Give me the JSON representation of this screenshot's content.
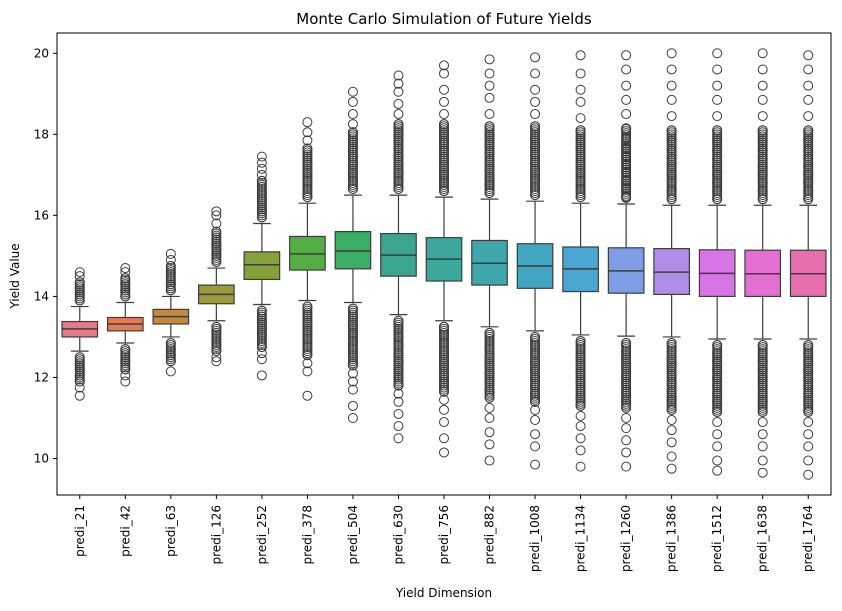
{
  "chart_data": {
    "type": "box",
    "title": "Monte Carlo Simulation of Future Yields",
    "xlabel": "Yield Dimension",
    "ylabel": "Yield Value",
    "ylim": [
      9.1,
      20.5
    ],
    "yticks": [
      10,
      12,
      14,
      16,
      18,
      20
    ],
    "grid": false,
    "categories": [
      "predi_21",
      "predi_42",
      "predi_63",
      "predi_126",
      "predi_252",
      "predi_378",
      "predi_504",
      "predi_630",
      "predi_756",
      "predi_882",
      "predi_1008",
      "predi_1134",
      "predi_1260",
      "predi_1386",
      "predi_1512",
      "predi_1638",
      "predi_1764"
    ],
    "colors": [
      "#e8798a",
      "#e57b55",
      "#c5893d",
      "#9b9a3c",
      "#85a23a",
      "#55ae45",
      "#3aad66",
      "#3ba68d",
      "#3ea79c",
      "#3fa6ac",
      "#41a6c1",
      "#4aa5d1",
      "#7d9de6",
      "#b08ee7",
      "#d774e6",
      "#e46fd2",
      "#e76fae"
    ],
    "boxes": [
      {
        "q1": 13.0,
        "median": 13.2,
        "q3": 13.38,
        "whislo": 12.65,
        "whishi": 13.75,
        "fliers_low": [
          12.5,
          12.35,
          12.2,
          12.05,
          11.9,
          11.75,
          11.55
        ],
        "fliers_high": [
          13.9,
          14.05,
          14.2,
          14.35,
          14.5,
          14.6
        ]
      },
      {
        "q1": 13.15,
        "median": 13.32,
        "q3": 13.48,
        "whislo": 12.85,
        "whishi": 13.85,
        "fliers_low": [
          12.7,
          12.55,
          12.4,
          12.2,
          12.05,
          11.9
        ],
        "fliers_high": [
          14.0,
          14.15,
          14.3,
          14.45,
          14.6,
          14.7
        ]
      },
      {
        "q1": 13.32,
        "median": 13.5,
        "q3": 13.68,
        "whislo": 13.0,
        "whishi": 14.0,
        "fliers_low": [
          12.85,
          12.7,
          12.55,
          12.4,
          12.15
        ],
        "fliers_high": [
          14.15,
          14.3,
          14.45,
          14.6,
          14.75,
          14.9,
          15.05
        ]
      },
      {
        "q1": 13.82,
        "median": 14.05,
        "q3": 14.28,
        "whislo": 13.4,
        "whishi": 14.7,
        "fliers_low": [
          13.25,
          13.1,
          12.95,
          12.8,
          12.65,
          12.5,
          12.4
        ],
        "fliers_high": [
          14.85,
          15.0,
          15.15,
          15.3,
          15.45,
          15.6,
          15.8,
          16.0,
          16.1
        ]
      },
      {
        "q1": 14.42,
        "median": 14.78,
        "q3": 15.1,
        "whislo": 13.8,
        "whishi": 15.8,
        "fliers_low": [
          13.65,
          13.5,
          13.35,
          13.2,
          13.05,
          12.9,
          12.75,
          12.6,
          12.45,
          12.05
        ],
        "fliers_high": [
          15.95,
          16.1,
          16.25,
          16.4,
          16.55,
          16.7,
          16.85,
          17.0,
          17.15,
          17.3,
          17.45
        ]
      },
      {
        "q1": 14.65,
        "median": 15.05,
        "q3": 15.48,
        "whislo": 13.9,
        "whishi": 16.3,
        "fliers_low": [
          13.75,
          13.55,
          13.35,
          13.15,
          12.95,
          12.75,
          12.55,
          12.35,
          12.15,
          11.55
        ],
        "fliers_high": [
          16.45,
          16.65,
          16.85,
          17.05,
          17.25,
          17.45,
          17.65,
          17.85,
          18.05,
          18.3
        ]
      },
      {
        "q1": 14.68,
        "median": 15.12,
        "q3": 15.6,
        "whislo": 13.85,
        "whishi": 16.5,
        "fliers_low": [
          13.7,
          13.5,
          13.3,
          13.1,
          12.9,
          12.7,
          12.5,
          12.3,
          12.1,
          11.9,
          11.7,
          11.3,
          11.0
        ],
        "fliers_high": [
          16.65,
          16.85,
          17.05,
          17.25,
          17.45,
          17.65,
          17.85,
          18.05,
          18.25,
          18.5,
          18.8,
          19.05
        ]
      },
      {
        "q1": 14.5,
        "median": 15.02,
        "q3": 15.55,
        "whislo": 13.55,
        "whishi": 16.5,
        "fliers_low": [
          13.4,
          13.2,
          13.0,
          12.8,
          12.6,
          12.4,
          12.2,
          12.0,
          11.8,
          11.6,
          11.4,
          11.1,
          10.8,
          10.5
        ],
        "fliers_high": [
          16.65,
          16.85,
          17.05,
          17.25,
          17.45,
          17.65,
          17.85,
          18.05,
          18.25,
          18.5,
          18.75,
          19.05,
          19.25,
          19.45
        ]
      },
      {
        "q1": 14.38,
        "median": 14.92,
        "q3": 15.45,
        "whislo": 13.4,
        "whishi": 16.45,
        "fliers_low": [
          13.25,
          13.05,
          12.85,
          12.65,
          12.45,
          12.25,
          12.05,
          11.85,
          11.65,
          11.45,
          11.2,
          10.9,
          10.5,
          10.15
        ],
        "fliers_high": [
          16.6,
          16.8,
          17.0,
          17.2,
          17.4,
          17.6,
          17.8,
          18.0,
          18.25,
          18.5,
          18.8,
          19.1,
          19.5,
          19.7
        ]
      },
      {
        "q1": 14.28,
        "median": 14.82,
        "q3": 15.38,
        "whislo": 13.25,
        "whishi": 16.4,
        "fliers_low": [
          13.1,
          12.9,
          12.7,
          12.5,
          12.3,
          12.1,
          11.9,
          11.7,
          11.5,
          11.25,
          11.0,
          10.65,
          10.35,
          9.95
        ],
        "fliers_high": [
          16.55,
          16.75,
          16.95,
          17.15,
          17.35,
          17.55,
          17.75,
          17.95,
          18.2,
          18.5,
          18.9,
          19.2,
          19.5,
          19.85
        ]
      },
      {
        "q1": 14.2,
        "median": 14.75,
        "q3": 15.3,
        "whislo": 13.15,
        "whishi": 16.35,
        "fliers_low": [
          13.0,
          12.8,
          12.6,
          12.4,
          12.2,
          12.0,
          11.8,
          11.6,
          11.4,
          11.2,
          10.95,
          10.6,
          10.3,
          9.85
        ],
        "fliers_high": [
          16.5,
          16.7,
          16.9,
          17.1,
          17.3,
          17.5,
          17.7,
          17.9,
          18.2,
          18.5,
          18.8,
          19.1,
          19.5,
          19.9
        ]
      },
      {
        "q1": 14.12,
        "median": 14.68,
        "q3": 15.22,
        "whislo": 13.05,
        "whishi": 16.3,
        "fliers_low": [
          12.9,
          12.7,
          12.5,
          12.3,
          12.1,
          11.9,
          11.7,
          11.5,
          11.3,
          11.05,
          10.8,
          10.5,
          10.2,
          9.8
        ],
        "fliers_high": [
          16.45,
          16.65,
          16.85,
          17.05,
          17.25,
          17.45,
          17.65,
          17.85,
          18.1,
          18.4,
          18.8,
          19.1,
          19.5,
          19.95
        ]
      },
      {
        "q1": 14.08,
        "median": 14.63,
        "q3": 15.2,
        "whislo": 13.02,
        "whishi": 16.28,
        "fliers_low": [
          12.85,
          12.65,
          12.45,
          12.25,
          12.05,
          11.85,
          11.65,
          11.45,
          11.25,
          11.0,
          10.75,
          10.45,
          10.15,
          9.8
        ],
        "fliers_high": [
          16.45,
          16.65,
          16.85,
          17.05,
          17.25,
          17.45,
          17.65,
          17.9,
          18.15,
          18.5,
          18.85,
          19.2,
          19.6,
          19.95
        ]
      },
      {
        "q1": 14.05,
        "median": 14.6,
        "q3": 15.18,
        "whislo": 13.0,
        "whishi": 16.25,
        "fliers_low": [
          12.85,
          12.65,
          12.45,
          12.25,
          12.05,
          11.85,
          11.65,
          11.45,
          11.2,
          10.95,
          10.7,
          10.4,
          10.05,
          9.75
        ],
        "fliers_high": [
          16.4,
          16.6,
          16.8,
          17.0,
          17.2,
          17.4,
          17.6,
          17.85,
          18.1,
          18.45,
          18.85,
          19.2,
          19.6,
          20.0
        ]
      },
      {
        "q1": 14.0,
        "median": 14.57,
        "q3": 15.15,
        "whislo": 12.95,
        "whishi": 16.25,
        "fliers_low": [
          12.8,
          12.6,
          12.4,
          12.2,
          12.0,
          11.8,
          11.6,
          11.4,
          11.15,
          10.9,
          10.6,
          10.3,
          9.95,
          9.7
        ],
        "fliers_high": [
          16.4,
          16.6,
          16.8,
          17.0,
          17.2,
          17.4,
          17.6,
          17.85,
          18.1,
          18.45,
          18.85,
          19.2,
          19.6,
          20.0
        ]
      },
      {
        "q1": 14.0,
        "median": 14.56,
        "q3": 15.14,
        "whislo": 12.95,
        "whishi": 16.25,
        "fliers_low": [
          12.8,
          12.6,
          12.4,
          12.2,
          12.0,
          11.8,
          11.6,
          11.4,
          11.15,
          10.9,
          10.6,
          10.3,
          9.95,
          9.65
        ],
        "fliers_high": [
          16.4,
          16.6,
          16.8,
          17.0,
          17.2,
          17.4,
          17.6,
          17.85,
          18.1,
          18.45,
          18.85,
          19.2,
          19.6,
          20.0
        ]
      },
      {
        "q1": 14.0,
        "median": 14.56,
        "q3": 15.14,
        "whislo": 12.95,
        "whishi": 16.25,
        "fliers_low": [
          12.8,
          12.6,
          12.4,
          12.2,
          12.0,
          11.8,
          11.6,
          11.4,
          11.15,
          10.9,
          10.6,
          10.3,
          9.95,
          9.6
        ],
        "fliers_high": [
          16.4,
          16.6,
          16.8,
          17.0,
          17.2,
          17.4,
          17.6,
          17.85,
          18.1,
          18.45,
          18.85,
          19.2,
          19.6,
          19.95
        ]
      }
    ]
  }
}
